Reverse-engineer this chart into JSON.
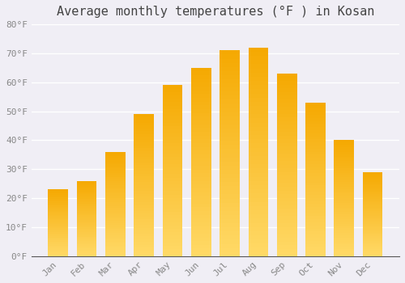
{
  "title": "Average monthly temperatures (°F ) in Kosan",
  "months": [
    "Jan",
    "Feb",
    "Mar",
    "Apr",
    "May",
    "Jun",
    "Jul",
    "Aug",
    "Sep",
    "Oct",
    "Nov",
    "Dec"
  ],
  "values": [
    23,
    26,
    36,
    49,
    59,
    65,
    71,
    72,
    63,
    53,
    40,
    29
  ],
  "bar_color_dark": "#F5A800",
  "bar_color_light": "#FFD966",
  "background_color": "#F0EEF5",
  "grid_color": "#FFFFFF",
  "tick_color": "#888888",
  "title_color": "#444444",
  "ylim": [
    0,
    80
  ],
  "yticks": [
    0,
    10,
    20,
    30,
    40,
    50,
    60,
    70,
    80
  ],
  "ytick_labels": [
    "0°F",
    "10°F",
    "20°F",
    "30°F",
    "40°F",
    "50°F",
    "60°F",
    "70°F",
    "80°F"
  ],
  "title_fontsize": 11,
  "tick_fontsize": 8,
  "font_family": "monospace",
  "bar_width": 0.7,
  "n_gradient_steps": 50
}
